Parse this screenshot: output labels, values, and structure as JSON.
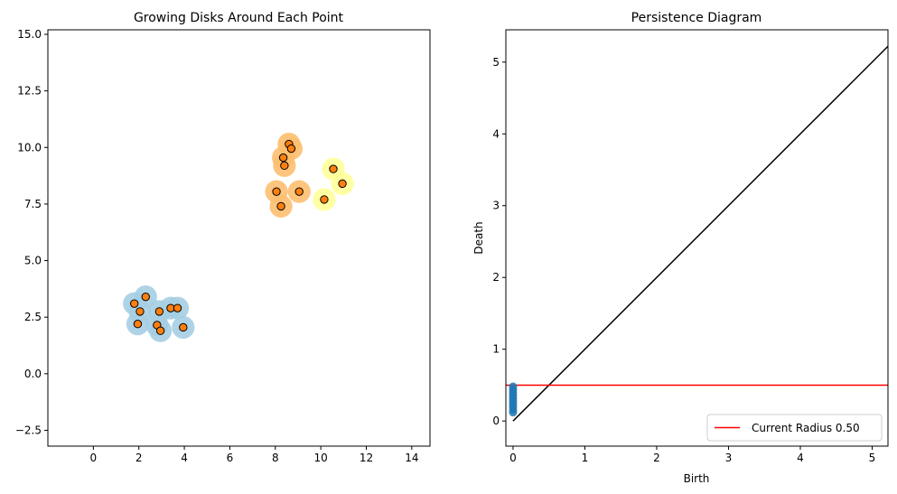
{
  "chart_data": [
    {
      "type": "scatter",
      "title": "Growing Disks Around Each Point",
      "xlabel": "",
      "ylabel": "",
      "xlim": [
        -2.0,
        14.8
      ],
      "ylim": [
        -3.2,
        15.2
      ],
      "xticks": [
        0,
        2,
        4,
        6,
        8,
        10,
        12,
        14
      ],
      "xtick_labels": [
        "0",
        "2",
        "4",
        "6",
        "8",
        "10",
        "12",
        "14"
      ],
      "yticks": [
        -2.5,
        0.0,
        2.5,
        5.0,
        7.5,
        10.0,
        12.5,
        15.0
      ],
      "ytick_labels": [
        "−2.5",
        "0.0",
        "2.5",
        "5.0",
        "7.5",
        "10.0",
        "12.5",
        "15.0"
      ],
      "disk_radius": 0.5,
      "grid": false,
      "point_color": "#ff7f0e",
      "clusters": [
        {
          "disk_color": "#a6cee3",
          "points": [
            [
              1.8,
              3.1
            ],
            [
              2.3,
              3.4
            ],
            [
              2.05,
              2.75
            ],
            [
              1.95,
              2.2
            ],
            [
              2.8,
              2.15
            ],
            [
              2.95,
              1.9
            ],
            [
              2.9,
              2.75
            ],
            [
              3.4,
              2.9
            ],
            [
              3.7,
              2.9
            ],
            [
              3.95,
              2.05
            ]
          ]
        },
        {
          "disk_color": "#fdbf6f",
          "points": [
            [
              8.6,
              10.15
            ],
            [
              8.7,
              9.95
            ],
            [
              8.35,
              9.55
            ],
            [
              8.4,
              9.2
            ],
            [
              8.05,
              8.05
            ],
            [
              9.05,
              8.05
            ],
            [
              8.25,
              7.4
            ]
          ]
        },
        {
          "disk_color": "#ffff99",
          "points": [
            [
              10.55,
              9.05
            ],
            [
              10.95,
              8.4
            ],
            [
              10.15,
              7.7
            ]
          ]
        }
      ]
    },
    {
      "type": "scatter",
      "title": "Persistence Diagram",
      "xlabel": "Birth",
      "ylabel": "Death",
      "xlim": [
        -0.1,
        5.22
      ],
      "ylim": [
        -0.35,
        5.45
      ],
      "xticks": [
        0,
        1,
        2,
        3,
        4,
        5
      ],
      "xtick_labels": [
        "0",
        "1",
        "2",
        "3",
        "4",
        "5"
      ],
      "yticks": [
        0,
        1,
        2,
        3,
        4,
        5
      ],
      "ytick_labels": [
        "0",
        "1",
        "2",
        "3",
        "4",
        "5"
      ],
      "grid": false,
      "point_color": "#1f77b4",
      "line_color": "#000000",
      "points": [
        [
          0,
          0.12
        ],
        [
          0,
          0.16
        ],
        [
          0,
          0.2
        ],
        [
          0,
          0.24
        ],
        [
          0,
          0.28
        ],
        [
          0,
          0.32
        ],
        [
          0,
          0.36
        ],
        [
          0,
          0.4
        ],
        [
          0,
          0.44
        ],
        [
          0,
          0.48
        ]
      ],
      "current_radius": 0.5,
      "radius_line_color": "#ff0000",
      "legend": {
        "label": "Current Radius 0.50",
        "placement": "lower-right"
      }
    }
  ]
}
